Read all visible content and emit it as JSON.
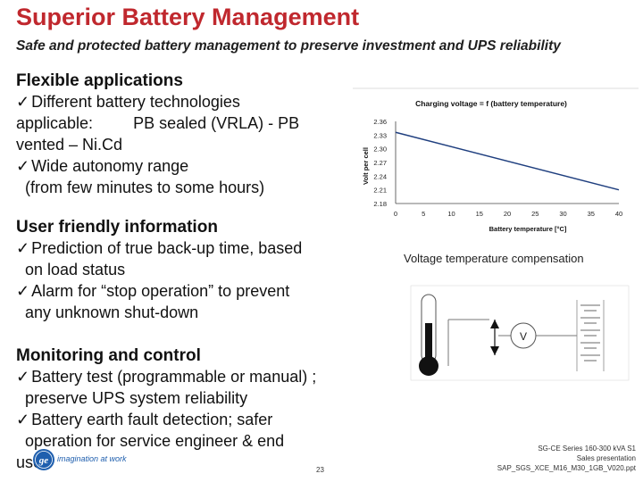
{
  "title": "Superior Battery Management",
  "subtitle": "Safe and protected battery management to preserve investment and UPS reliability",
  "sections": [
    {
      "heading": "Flexible applications",
      "lines": [
        {
          "check": true,
          "text": "Different battery technologies"
        },
        {
          "check": false,
          "text": "applicable:         PB sealed (VRLA) - PB"
        },
        {
          "check": false,
          "text": "vented – Ni.Cd"
        },
        {
          "check": true,
          "text": "Wide autonomy range"
        },
        {
          "check": false,
          "text": "  (from few minutes to some hours)"
        }
      ]
    },
    {
      "heading": "User friendly information",
      "lines": [
        {
          "check": true,
          "text": "Prediction of true back-up time, based"
        },
        {
          "check": false,
          "text": "  on load status"
        },
        {
          "check": true,
          "text": "Alarm for “stop operation” to prevent"
        },
        {
          "check": false,
          "text": "  any unknown shut-down"
        }
      ]
    },
    {
      "heading": "Monitoring and control",
      "lines": [
        {
          "check": true,
          "text": "Battery test (programmable or manual) ;"
        },
        {
          "check": false,
          "text": "  preserve UPS system reliability"
        },
        {
          "check": true,
          "text": "Battery earth fault detection; safer"
        },
        {
          "check": false,
          "text": "  operation for service engineer & end"
        },
        {
          "check": false,
          "text": "user"
        }
      ]
    }
  ],
  "check_glyph": "ü",
  "chart_data": {
    "type": "line",
    "title": "Charging voltage = f (battery temperature)",
    "xlabel": "Battery temperature [°C]",
    "ylabel": "Volt per cell",
    "x_ticks": [
      "0",
      "5",
      "10",
      "15",
      "20",
      "25",
      "30",
      "35",
      "40"
    ],
    "y_ticks": [
      "2.18",
      "2.21",
      "2.24",
      "2.27",
      "2.30",
      "2.33",
      "2.36"
    ],
    "xlim": [
      0,
      40
    ],
    "ylim": [
      2.18,
      2.36
    ],
    "grid": false,
    "series": [
      {
        "x": [
          0,
          40
        ],
        "y": [
          2.336,
          2.21
        ],
        "color": "#1f3f7f"
      }
    ]
  },
  "caption": "Voltage temperature compensation",
  "diagram": {
    "meter_label": "V"
  },
  "footer": {
    "lines": [
      "SG-CE Series 160-300 kVA S1",
      "Sales presentation",
      "SAP_SGS_XCE_M16_M30_1GB_V020.ppt"
    ],
    "page_number": "23",
    "logo_mark": "ge",
    "logo_text": "imagination at work",
    "brand_color": "#1f5fae"
  },
  "colors": {
    "title": "#c0282e",
    "chart_line": "#1f3f7f"
  }
}
